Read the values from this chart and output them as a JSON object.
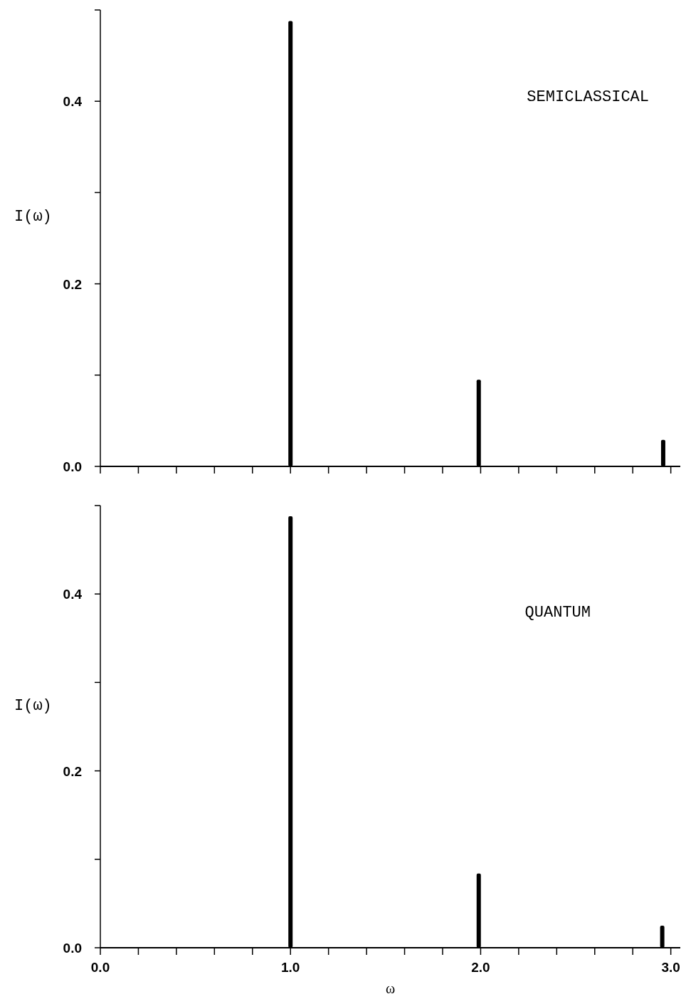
{
  "chart_data": [
    {
      "type": "bar",
      "x": [
        1.0,
        1.99,
        2.96
      ],
      "values": [
        0.488,
        0.095,
        0.029
      ],
      "color": "#000000",
      "xlim": [
        0,
        3.05
      ],
      "ylim": [
        0,
        0.5
      ],
      "ylabel": "I(ω)",
      "annotations": [
        "SEMICLASSICAL"
      ],
      "tick_labels": "y",
      "xticks": [
        {
          "value": 0,
          "label": null
        },
        {
          "value": 0.2,
          "label": null
        },
        {
          "value": 0.4,
          "label": null
        },
        {
          "value": 0.6,
          "label": null
        },
        {
          "value": 0.8,
          "label": null
        },
        {
          "value": 1,
          "label": null
        },
        {
          "value": 1.2,
          "label": null
        },
        {
          "value": 1.4,
          "label": null
        },
        {
          "value": 1.6,
          "label": null
        },
        {
          "value": 1.8,
          "label": null
        },
        {
          "value": 2,
          "label": null
        },
        {
          "value": 2.2,
          "label": null
        },
        {
          "value": 2.4,
          "label": null
        },
        {
          "value": 2.6,
          "label": null
        },
        {
          "value": 2.8,
          "label": null
        },
        {
          "value": 3,
          "label": null
        }
      ],
      "yticks": [
        {
          "value": 0,
          "label": "0.0"
        },
        {
          "value": 0.1,
          "label": null
        },
        {
          "value": 0.2,
          "label": "0.2"
        },
        {
          "value": 0.3,
          "label": null
        },
        {
          "value": 0.4,
          "label": "0.4"
        },
        {
          "value": 0.5,
          "label": null
        }
      ]
    },
    {
      "type": "bar",
      "x": [
        1.0,
        1.99,
        2.955
      ],
      "values": [
        0.488,
        0.084,
        0.025
      ],
      "color": "#000000",
      "xlim": [
        0,
        3.05
      ],
      "ylim": [
        0,
        0.5
      ],
      "ylabel": "I(ω)",
      "xlabel": "ω",
      "annotations": [
        "QUANTUM"
      ],
      "xticks": [
        {
          "value": 0,
          "label": "0.0"
        },
        {
          "value": 0.2,
          "label": null
        },
        {
          "value": 0.4,
          "label": null
        },
        {
          "value": 0.6,
          "label": null
        },
        {
          "value": 0.8,
          "label": null
        },
        {
          "value": 1,
          "label": "1.0"
        },
        {
          "value": 1.2,
          "label": null
        },
        {
          "value": 1.4,
          "label": null
        },
        {
          "value": 1.6,
          "label": null
        },
        {
          "value": 1.8,
          "label": null
        },
        {
          "value": 2,
          "label": "2.0"
        },
        {
          "value": 2.2,
          "label": null
        },
        {
          "value": 2.4,
          "label": null
        },
        {
          "value": 2.6,
          "label": null
        },
        {
          "value": 2.8,
          "label": null
        },
        {
          "value": 3,
          "label": "3.0"
        }
      ],
      "yticks": [
        {
          "value": 0,
          "label": "0.0"
        },
        {
          "value": 0.1,
          "label": null
        },
        {
          "value": 0.2,
          "label": "0.2"
        },
        {
          "value": 0.3,
          "label": null
        },
        {
          "value": 0.4,
          "label": "0.4"
        },
        {
          "value": 0.5,
          "label": null
        }
      ]
    }
  ]
}
